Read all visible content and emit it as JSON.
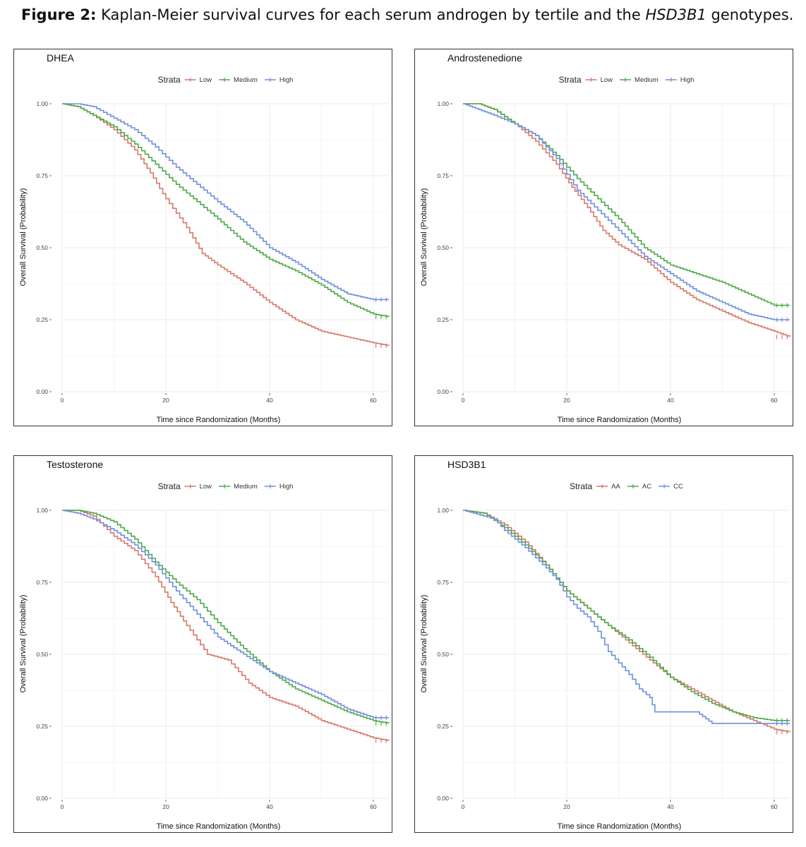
{
  "figure": {
    "caption_bold": "Figure 2:",
    "caption_text": " Kaplan-Meier survival curves for each serum androgen by tertile and the ",
    "caption_italic": "HSD3B1",
    "caption_end": " genotypes."
  },
  "colors": {
    "red": "#D9776A",
    "green": "#4DAA48",
    "blue": "#6F8FDD",
    "grid": "#EBEBEB"
  },
  "chart_data": [
    {
      "type": "line",
      "title": "DHEA",
      "legend_title": "Strata",
      "xlabel": "Time since Randomization (Months)",
      "ylabel": "Overall Survival (Probability)",
      "xlim": [
        0,
        63
      ],
      "ylim": [
        0,
        1
      ],
      "xticks": [
        "0",
        "20",
        "40",
        "60"
      ],
      "yticks": [
        "0.00",
        "0.25",
        "0.50",
        "0.75",
        "1.00"
      ],
      "series": [
        {
          "name": "Low",
          "color": "red",
          "x": [
            0,
            3,
            6,
            10,
            14,
            17,
            20,
            24,
            27,
            30,
            35,
            40,
            45,
            50,
            55,
            60,
            63
          ],
          "y": [
            1,
            0.99,
            0.96,
            0.91,
            0.84,
            0.76,
            0.67,
            0.57,
            0.48,
            0.44,
            0.38,
            0.31,
            0.25,
            0.21,
            0.19,
            0.17,
            0.16
          ]
        },
        {
          "name": "Medium",
          "color": "green",
          "x": [
            0,
            3,
            6,
            10,
            14,
            18,
            22,
            26,
            30,
            35,
            40,
            45,
            50,
            55,
            60,
            63
          ],
          "y": [
            1,
            0.99,
            0.96,
            0.92,
            0.86,
            0.79,
            0.72,
            0.66,
            0.6,
            0.52,
            0.46,
            0.42,
            0.37,
            0.31,
            0.27,
            0.26
          ]
        },
        {
          "name": "High",
          "color": "blue",
          "x": [
            0,
            3,
            6,
            10,
            14,
            18,
            22,
            26,
            30,
            35,
            40,
            45,
            50,
            55,
            60,
            63
          ],
          "y": [
            1,
            1,
            0.99,
            0.95,
            0.91,
            0.85,
            0.78,
            0.72,
            0.66,
            0.59,
            0.5,
            0.45,
            0.39,
            0.34,
            0.32,
            0.32
          ]
        }
      ]
    },
    {
      "type": "line",
      "title": "Androstenedione",
      "legend_title": "Strata",
      "xlabel": "Time since Randomization (Months)",
      "ylabel": "Overall Survival (Probability)",
      "xlim": [
        0,
        63
      ],
      "ylim": [
        0,
        1
      ],
      "xticks": [
        "0",
        "20",
        "40",
        "60"
      ],
      "yticks": [
        "0.00",
        "0.25",
        "0.50",
        "0.75",
        "1.00"
      ],
      "series": [
        {
          "name": "Low",
          "color": "red",
          "x": [
            0,
            3,
            6,
            10,
            14,
            18,
            21,
            24,
            27,
            30,
            35,
            40,
            45,
            50,
            55,
            60,
            63
          ],
          "y": [
            1,
            1,
            0.98,
            0.93,
            0.87,
            0.79,
            0.71,
            0.64,
            0.56,
            0.51,
            0.46,
            0.38,
            0.32,
            0.28,
            0.24,
            0.21,
            0.19
          ]
        },
        {
          "name": "Medium",
          "color": "green",
          "x": [
            0,
            3,
            6,
            10,
            14,
            18,
            22,
            26,
            30,
            35,
            40,
            45,
            50,
            55,
            60,
            63
          ],
          "y": [
            1,
            1,
            0.98,
            0.93,
            0.89,
            0.82,
            0.74,
            0.67,
            0.6,
            0.5,
            0.44,
            0.41,
            0.38,
            0.34,
            0.3,
            0.3
          ]
        },
        {
          "name": "High",
          "color": "blue",
          "x": [
            0,
            3,
            6,
            10,
            14,
            18,
            22,
            26,
            30,
            35,
            40,
            45,
            50,
            55,
            60,
            63
          ],
          "y": [
            1,
            0.98,
            0.96,
            0.93,
            0.89,
            0.81,
            0.7,
            0.63,
            0.56,
            0.47,
            0.41,
            0.35,
            0.31,
            0.27,
            0.25,
            0.25
          ]
        }
      ]
    },
    {
      "type": "line",
      "title": "Testosterone",
      "legend_title": "Strata",
      "xlabel": "Time since Randomization (Months)",
      "ylabel": "Overall Survival (Probability)",
      "xlim": [
        0,
        63
      ],
      "ylim": [
        0,
        1
      ],
      "xticks": [
        "0",
        "20",
        "40",
        "60"
      ],
      "yticks": [
        "0.00",
        "0.25",
        "0.50",
        "0.75",
        "1.00"
      ],
      "series": [
        {
          "name": "Low",
          "color": "red",
          "x": [
            0,
            3,
            6,
            10,
            14,
            18,
            21,
            24,
            28,
            32,
            36,
            40,
            45,
            50,
            55,
            60,
            63
          ],
          "y": [
            1,
            1,
            0.98,
            0.91,
            0.86,
            0.77,
            0.68,
            0.6,
            0.5,
            0.48,
            0.4,
            0.35,
            0.32,
            0.27,
            0.24,
            0.21,
            0.2
          ]
        },
        {
          "name": "Medium",
          "color": "green",
          "x": [
            0,
            3,
            6,
            10,
            14,
            18,
            22,
            26,
            30,
            35,
            40,
            45,
            50,
            55,
            60,
            63
          ],
          "y": [
            1,
            1,
            0.99,
            0.96,
            0.9,
            0.82,
            0.75,
            0.69,
            0.61,
            0.52,
            0.44,
            0.38,
            0.34,
            0.3,
            0.27,
            0.26
          ]
        },
        {
          "name": "High",
          "color": "blue",
          "x": [
            0,
            3,
            6,
            10,
            14,
            18,
            22,
            26,
            30,
            35,
            40,
            45,
            50,
            55,
            60,
            63
          ],
          "y": [
            1,
            0.99,
            0.97,
            0.93,
            0.88,
            0.81,
            0.72,
            0.64,
            0.56,
            0.5,
            0.44,
            0.4,
            0.36,
            0.31,
            0.28,
            0.28
          ]
        }
      ]
    },
    {
      "type": "line",
      "title": "HSD3B1",
      "legend_title": "Strata",
      "xlabel": "Time since Randomization (Months)",
      "ylabel": "Overall Survival (Probability)",
      "xlim": [
        0,
        63
      ],
      "ylim": [
        0,
        1
      ],
      "xticks": [
        "0",
        "20",
        "40",
        "60"
      ],
      "yticks": [
        "0.00",
        "0.25",
        "0.50",
        "0.75",
        "1.00"
      ],
      "series": [
        {
          "name": "AA",
          "color": "red",
          "x": [
            0,
            4,
            8,
            12,
            16,
            20,
            24,
            28,
            32,
            36,
            40,
            44,
            48,
            52,
            56,
            60,
            63
          ],
          "y": [
            1,
            0.99,
            0.95,
            0.89,
            0.81,
            0.72,
            0.66,
            0.6,
            0.54,
            0.48,
            0.42,
            0.38,
            0.34,
            0.3,
            0.27,
            0.24,
            0.23
          ]
        },
        {
          "name": "AC",
          "color": "green",
          "x": [
            0,
            4,
            8,
            12,
            16,
            20,
            24,
            28,
            32,
            36,
            40,
            44,
            48,
            52,
            56,
            60,
            63
          ],
          "y": [
            1,
            0.99,
            0.94,
            0.88,
            0.81,
            0.72,
            0.66,
            0.6,
            0.55,
            0.49,
            0.42,
            0.37,
            0.33,
            0.3,
            0.28,
            0.27,
            0.27
          ]
        },
        {
          "name": "CC",
          "color": "blue",
          "x": [
            0,
            6,
            8,
            12,
            16,
            18,
            20,
            22,
            24,
            26,
            28,
            30,
            32,
            34,
            36,
            37,
            40,
            45,
            48,
            50,
            55,
            60,
            63
          ],
          "y": [
            1,
            0.97,
            0.93,
            0.87,
            0.8,
            0.76,
            0.7,
            0.66,
            0.63,
            0.58,
            0.51,
            0.47,
            0.43,
            0.38,
            0.35,
            0.3,
            0.3,
            0.3,
            0.26,
            0.26,
            0.26,
            0.26,
            0.26
          ]
        }
      ]
    }
  ]
}
